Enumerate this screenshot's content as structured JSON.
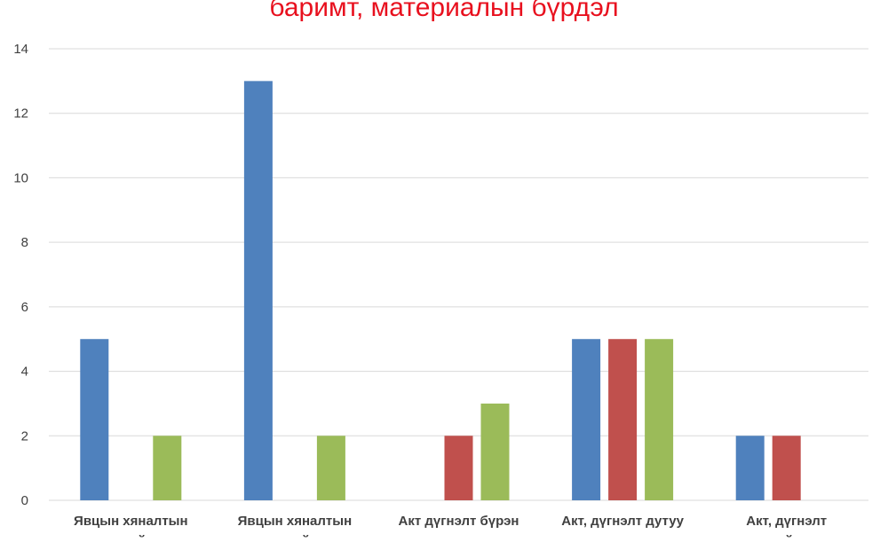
{
  "chart_data": {
    "type": "bar",
    "title": "баримт, материалын бүрдэл",
    "xlabel": "",
    "ylabel": "",
    "ylim": [
      0,
      14
    ],
    "yticks": [
      0,
      2,
      4,
      6,
      8,
      10,
      12,
      14
    ],
    "grid": true,
    "legend": "none visible",
    "categories": [
      [
        "Явцын хяналтын",
        "… …йл"
      ],
      [
        "Явцын хяналтын",
        "… …йл"
      ],
      [
        "Акт дүгнэлт бүрэн",
        ""
      ],
      [
        "Акт, дүгнэлт дутуу",
        ""
      ],
      [
        "Акт, дүгнэлт",
        "…йл"
      ]
    ],
    "series": [
      {
        "color": "#4f81bd",
        "values": [
          5,
          13,
          0,
          5,
          2
        ]
      },
      {
        "color": "#c0504d",
        "values": [
          0,
          0,
          2,
          5,
          2
        ]
      },
      {
        "color": "#9bbb59",
        "values": [
          2,
          2,
          3,
          5,
          0
        ]
      }
    ]
  }
}
